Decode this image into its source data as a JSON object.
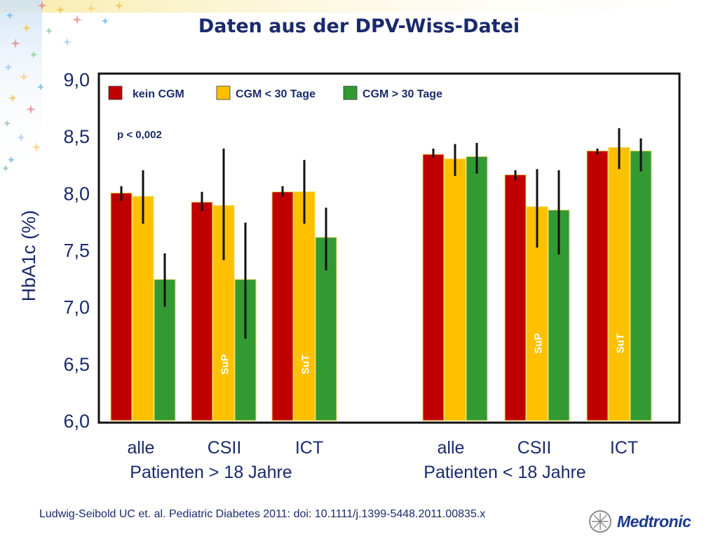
{
  "slide": {
    "title": "Daten aus der DPV-Wiss-Datei",
    "citation": "Ludwig-Seibold UC et. al. Pediatric Diabetes 2011: doi: 10.1111/j.1399-5448.2011.00835.x",
    "logo": "Medtronic"
  },
  "colors": {
    "kein_cgm": "#c00000",
    "cgm_lt_30": "#ffc000",
    "cgm_gt_30": "#339933",
    "text": "#1a2a6c"
  },
  "chart_data": {
    "type": "bar",
    "ylabel": "HbA1c (%)",
    "ylim": [
      6.0,
      9.0
    ],
    "yticks": [
      "6,0",
      "6,5",
      "7,0",
      "7,5",
      "8,0",
      "8,5",
      "9,0"
    ],
    "annotation": "p < 0,002",
    "legend": [
      "kein CGM",
      "CGM < 30 Tage",
      "CGM > 30 Tage"
    ],
    "legend_placement": "top-left",
    "groups": [
      {
        "name": "Patienten > 18 Jahre",
        "categories": [
          {
            "name": "alle",
            "values": [
              8.0,
              7.97,
              7.24
            ],
            "errors": [
              [
                7.93,
                8.06
              ],
              [
                7.73,
                8.2
              ],
              [
                7.0,
                7.47
              ]
            ],
            "tag": ""
          },
          {
            "name": "CSII",
            "values": [
              7.92,
              7.89,
              7.24
            ],
            "errors": [
              [
                7.84,
                8.01
              ],
              [
                7.41,
                8.39
              ],
              [
                6.72,
                7.74
              ]
            ],
            "tag": "SuP"
          },
          {
            "name": "ICT",
            "values": [
              8.01,
              8.01,
              7.61
            ],
            "errors": [
              [
                7.97,
                8.06
              ],
              [
                7.73,
                8.29
              ],
              [
                7.32,
                7.87
              ]
            ],
            "tag": "SuT"
          }
        ]
      },
      {
        "name": "Patienten < 18 Jahre",
        "categories": [
          {
            "name": "alle",
            "values": [
              8.34,
              8.3,
              8.32
            ],
            "errors": [
              [
                8.31,
                8.39
              ],
              [
                8.15,
                8.43
              ],
              [
                8.17,
                8.44
              ]
            ],
            "tag": ""
          },
          {
            "name": "CSII",
            "values": [
              8.16,
              7.88,
              7.85
            ],
            "errors": [
              [
                8.11,
                8.2
              ],
              [
                7.52,
                8.21
              ],
              [
                7.46,
                8.2
              ]
            ],
            "tag": "SuP"
          },
          {
            "name": "ICT",
            "values": [
              8.37,
              8.4,
              8.37
            ],
            "errors": [
              [
                8.34,
                8.39
              ],
              [
                8.21,
                8.57
              ],
              [
                8.19,
                8.48
              ]
            ],
            "tag": "SuT"
          }
        ]
      }
    ]
  }
}
